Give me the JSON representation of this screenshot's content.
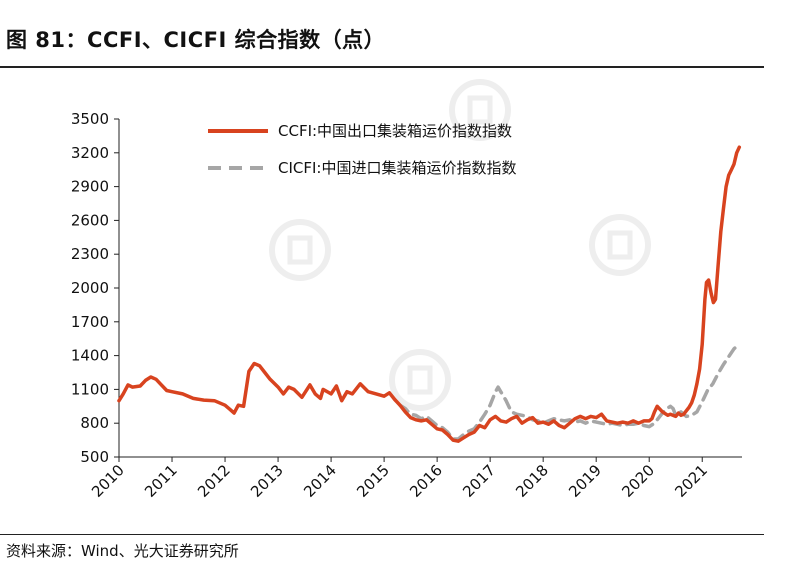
{
  "header": {
    "title": "图 81：CCFI、CICFI 综合指数（点）"
  },
  "footer": {
    "source": "资料来源：Wind、光大证券研究所"
  },
  "colors": {
    "ccfi": "#d8431f",
    "cicfi": "#a6a6a6"
  },
  "chart_data": {
    "type": "line",
    "title": "",
    "xlabel": "",
    "ylabel": "",
    "ylim": [
      500,
      3500
    ],
    "yticks": [
      500,
      800,
      1100,
      1400,
      1700,
      2000,
      2300,
      2600,
      2900,
      3200,
      3500
    ],
    "xlim": [
      2010,
      2021.75
    ],
    "xticks": [
      "2010",
      "2011",
      "2012",
      "2013",
      "2014",
      "2015",
      "2016",
      "2017",
      "2018",
      "2019",
      "2020",
      "2021"
    ],
    "legend_position": "top-center",
    "grid": false,
    "series": [
      {
        "name": "CCFI:中国出口集装箱运价指数指数",
        "style": "solid",
        "points": [
          [
            2010.0,
            1000
          ],
          [
            2010.08,
            1060
          ],
          [
            2010.17,
            1140
          ],
          [
            2010.25,
            1120
          ],
          [
            2010.4,
            1130
          ],
          [
            2010.5,
            1180
          ],
          [
            2010.6,
            1210
          ],
          [
            2010.7,
            1190
          ],
          [
            2010.8,
            1140
          ],
          [
            2010.9,
            1090
          ],
          [
            2011.0,
            1080
          ],
          [
            2011.2,
            1060
          ],
          [
            2011.4,
            1020
          ],
          [
            2011.6,
            1005
          ],
          [
            2011.8,
            1000
          ],
          [
            2012.0,
            960
          ],
          [
            2012.1,
            920
          ],
          [
            2012.17,
            890
          ],
          [
            2012.25,
            960
          ],
          [
            2012.35,
            950
          ],
          [
            2012.45,
            1260
          ],
          [
            2012.55,
            1330
          ],
          [
            2012.65,
            1310
          ],
          [
            2012.75,
            1250
          ],
          [
            2012.85,
            1190
          ],
          [
            2013.0,
            1120
          ],
          [
            2013.1,
            1060
          ],
          [
            2013.2,
            1120
          ],
          [
            2013.3,
            1100
          ],
          [
            2013.45,
            1030
          ],
          [
            2013.6,
            1140
          ],
          [
            2013.7,
            1060
          ],
          [
            2013.8,
            1020
          ],
          [
            2013.85,
            1100
          ],
          [
            2014.0,
            1060
          ],
          [
            2014.1,
            1130
          ],
          [
            2014.2,
            1000
          ],
          [
            2014.3,
            1080
          ],
          [
            2014.4,
            1060
          ],
          [
            2014.55,
            1150
          ],
          [
            2014.7,
            1080
          ],
          [
            2014.85,
            1060
          ],
          [
            2015.0,
            1040
          ],
          [
            2015.1,
            1070
          ],
          [
            2015.2,
            1010
          ],
          [
            2015.3,
            960
          ],
          [
            2015.4,
            900
          ],
          [
            2015.5,
            850
          ],
          [
            2015.6,
            830
          ],
          [
            2015.7,
            820
          ],
          [
            2015.8,
            830
          ],
          [
            2015.9,
            790
          ],
          [
            2016.0,
            750
          ],
          [
            2016.1,
            740
          ],
          [
            2016.2,
            700
          ],
          [
            2016.3,
            650
          ],
          [
            2016.4,
            640
          ],
          [
            2016.5,
            670
          ],
          [
            2016.6,
            700
          ],
          [
            2016.7,
            720
          ],
          [
            2016.8,
            780
          ],
          [
            2016.9,
            760
          ],
          [
            2017.0,
            830
          ],
          [
            2017.1,
            860
          ],
          [
            2017.2,
            820
          ],
          [
            2017.3,
            810
          ],
          [
            2017.4,
            840
          ],
          [
            2017.5,
            860
          ],
          [
            2017.6,
            800
          ],
          [
            2017.7,
            830
          ],
          [
            2017.8,
            850
          ],
          [
            2017.9,
            800
          ],
          [
            2018.0,
            810
          ],
          [
            2018.1,
            790
          ],
          [
            2018.2,
            820
          ],
          [
            2018.3,
            780
          ],
          [
            2018.4,
            760
          ],
          [
            2018.5,
            800
          ],
          [
            2018.6,
            840
          ],
          [
            2018.7,
            860
          ],
          [
            2018.8,
            840
          ],
          [
            2018.9,
            860
          ],
          [
            2019.0,
            850
          ],
          [
            2019.1,
            880
          ],
          [
            2019.2,
            820
          ],
          [
            2019.3,
            810
          ],
          [
            2019.4,
            800
          ],
          [
            2019.5,
            810
          ],
          [
            2019.6,
            800
          ],
          [
            2019.7,
            820
          ],
          [
            2019.8,
            800
          ],
          [
            2019.9,
            820
          ],
          [
            2020.0,
            820
          ],
          [
            2020.05,
            840
          ],
          [
            2020.1,
            900
          ],
          [
            2020.15,
            950
          ],
          [
            2020.25,
            900
          ],
          [
            2020.35,
            870
          ],
          [
            2020.4,
            880
          ],
          [
            2020.5,
            860
          ],
          [
            2020.55,
            890
          ],
          [
            2020.6,
            870
          ],
          [
            2020.65,
            880
          ],
          [
            2020.7,
            910
          ],
          [
            2020.75,
            940
          ],
          [
            2020.8,
            980
          ],
          [
            2020.85,
            1050
          ],
          [
            2020.9,
            1150
          ],
          [
            2020.95,
            1280
          ],
          [
            2021.0,
            1500
          ],
          [
            2021.05,
            1900
          ],
          [
            2021.08,
            2050
          ],
          [
            2021.12,
            2070
          ],
          [
            2021.17,
            1950
          ],
          [
            2021.21,
            1870
          ],
          [
            2021.25,
            1900
          ],
          [
            2021.3,
            2200
          ],
          [
            2021.35,
            2500
          ],
          [
            2021.4,
            2700
          ],
          [
            2021.45,
            2900
          ],
          [
            2021.5,
            3000
          ],
          [
            2021.55,
            3050
          ],
          [
            2021.6,
            3100
          ],
          [
            2021.65,
            3200
          ],
          [
            2021.7,
            3250
          ]
        ]
      },
      {
        "name": "CICFI:中国进口集装箱运价指数指数",
        "style": "dashed",
        "points": [
          [
            2015.3,
            960
          ],
          [
            2015.4,
            930
          ],
          [
            2015.5,
            880
          ],
          [
            2015.6,
            870
          ],
          [
            2015.7,
            840
          ],
          [
            2015.8,
            860
          ],
          [
            2015.9,
            820
          ],
          [
            2016.0,
            780
          ],
          [
            2016.1,
            760
          ],
          [
            2016.2,
            720
          ],
          [
            2016.3,
            660
          ],
          [
            2016.4,
            660
          ],
          [
            2016.5,
            700
          ],
          [
            2016.6,
            730
          ],
          [
            2016.7,
            750
          ],
          [
            2016.8,
            810
          ],
          [
            2016.9,
            880
          ],
          [
            2017.0,
            960
          ],
          [
            2017.1,
            1080
          ],
          [
            2017.15,
            1120
          ],
          [
            2017.2,
            1080
          ],
          [
            2017.3,
            1000
          ],
          [
            2017.4,
            900
          ],
          [
            2017.5,
            880
          ],
          [
            2017.6,
            870
          ],
          [
            2017.7,
            860
          ],
          [
            2017.8,
            830
          ],
          [
            2017.9,
            820
          ],
          [
            2018.0,
            800
          ],
          [
            2018.1,
            820
          ],
          [
            2018.2,
            840
          ],
          [
            2018.3,
            830
          ],
          [
            2018.4,
            820
          ],
          [
            2018.5,
            830
          ],
          [
            2018.6,
            810
          ],
          [
            2018.7,
            820
          ],
          [
            2018.8,
            800
          ],
          [
            2018.9,
            820
          ],
          [
            2019.0,
            810
          ],
          [
            2019.1,
            800
          ],
          [
            2019.2,
            790
          ],
          [
            2019.3,
            800
          ],
          [
            2019.4,
            790
          ],
          [
            2019.5,
            780
          ],
          [
            2019.6,
            790
          ],
          [
            2019.7,
            790
          ],
          [
            2019.8,
            800
          ],
          [
            2019.9,
            780
          ],
          [
            2020.0,
            770
          ],
          [
            2020.1,
            800
          ],
          [
            2020.2,
            860
          ],
          [
            2020.3,
            920
          ],
          [
            2020.4,
            950
          ],
          [
            2020.45,
            930
          ],
          [
            2020.5,
            870
          ],
          [
            2020.6,
            900
          ],
          [
            2020.7,
            860
          ],
          [
            2020.8,
            870
          ],
          [
            2020.9,
            900
          ],
          [
            2021.0,
            990
          ],
          [
            2021.1,
            1090
          ],
          [
            2021.2,
            1150
          ],
          [
            2021.3,
            1240
          ],
          [
            2021.4,
            1320
          ],
          [
            2021.5,
            1390
          ],
          [
            2021.6,
            1460
          ],
          [
            2021.7,
            1500
          ]
        ]
      }
    ]
  }
}
